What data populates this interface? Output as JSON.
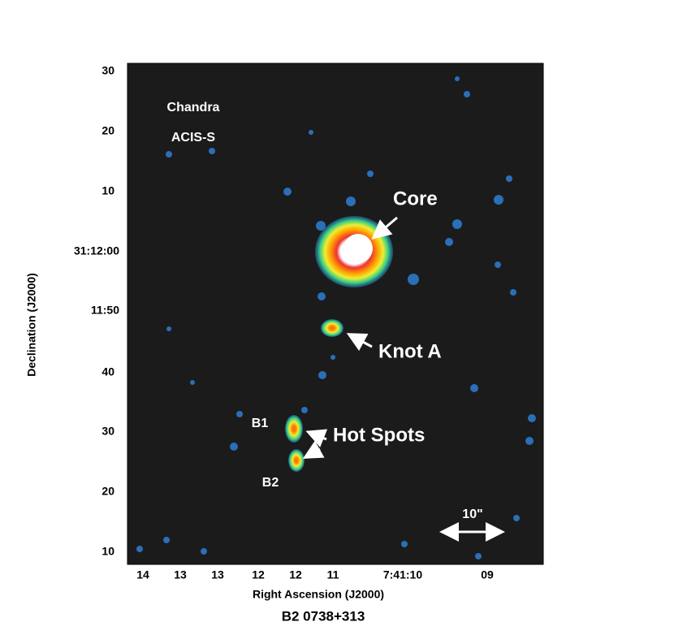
{
  "title": "B2 0738+313",
  "x_axis": {
    "label": "Right Ascension (J2000)",
    "ticks": [
      "14",
      "13",
      "13",
      "12",
      "12",
      "11",
      "7:41:10",
      "09"
    ]
  },
  "y_axis": {
    "label": "Declination (J2000)",
    "ticks": [
      "30",
      "20",
      "10",
      "31:12:00",
      "11:50",
      "40",
      "30",
      "20",
      "10"
    ]
  },
  "annotations": {
    "instrument_1": "Chandra",
    "instrument_2": "ACIS-S",
    "core": "Core",
    "knot": "Knot A",
    "hot_spots": "Hot Spots",
    "b1": "B1",
    "b2": "B2",
    "scale": "10\""
  }
}
